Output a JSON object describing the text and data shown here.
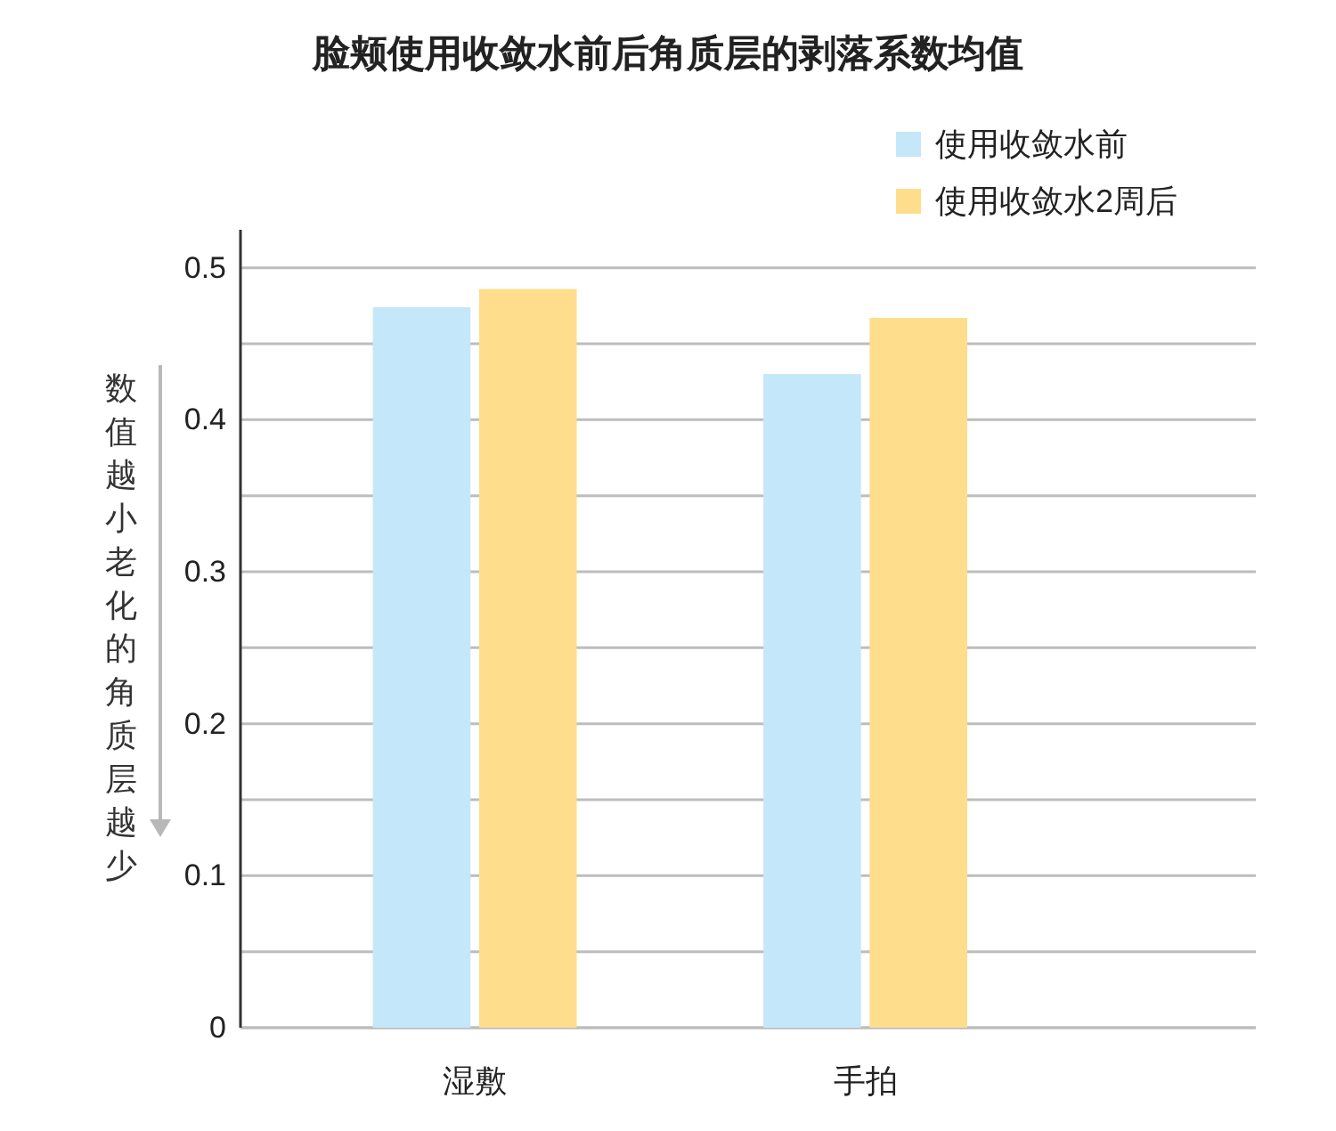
{
  "chart_data": {
    "type": "bar",
    "title": "脸颊使用收敛水前后角质层的剥落系数均值",
    "ylabel": "数值越小老化的角质层越少",
    "categories": [
      "湿敷",
      "手拍"
    ],
    "series": [
      {
        "name": "使用收敛水前",
        "color": "#c4e7fa",
        "values": [
          0.474,
          0.43
        ]
      },
      {
        "name": "使用收敛水2周后",
        "color": "#fedd8c",
        "values": [
          0.486,
          0.467
        ]
      }
    ],
    "ylim": [
      0,
      0.525
    ],
    "yticks": [
      0,
      {
        "value": 0.05,
        "label": null
      },
      0.1,
      {
        "value": 0.15,
        "label": null
      },
      0.2,
      {
        "value": 0.25,
        "label": null
      },
      0.3,
      {
        "value": 0.35,
        "label": null
      },
      0.4,
      {
        "value": 0.45,
        "label": null
      },
      0.5
    ],
    "grid": "y",
    "legend": "top right"
  }
}
